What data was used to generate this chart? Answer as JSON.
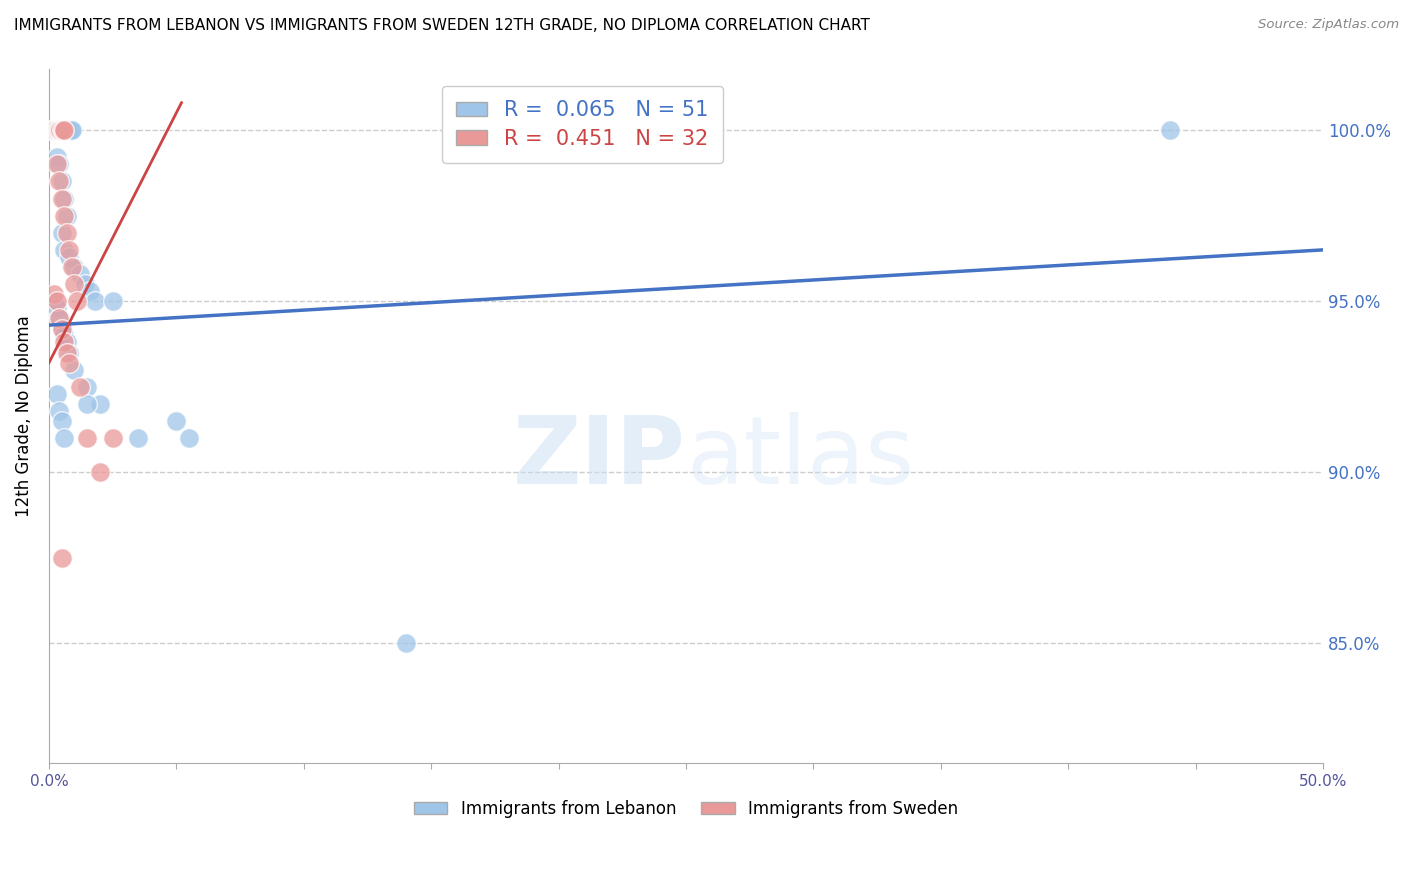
{
  "title": "IMMIGRANTS FROM LEBANON VS IMMIGRANTS FROM SWEDEN 12TH GRADE, NO DIPLOMA CORRELATION CHART",
  "source": "Source: ZipAtlas.com",
  "ylabel": "12th Grade, No Diploma",
  "r_blue": "0.065",
  "n_blue": "51",
  "r_pink": "0.451",
  "n_pink": "32",
  "blue_color": "#9fc5e8",
  "pink_color": "#ea9999",
  "blue_line_color": "#4472c4",
  "pink_line_color": "#cc4444",
  "background_color": "#ffffff",
  "grid_color": "#cccccc",
  "xlim": [
    0.0,
    50.0
  ],
  "ylim": [
    81.5,
    101.8
  ],
  "y_tick_vals": [
    85,
    90,
    95,
    100
  ],
  "y_tick_labels": [
    "85.0%",
    "90.0%",
    "95.0%",
    "100.0%"
  ],
  "legend_label_blue": "Immigrants from Lebanon",
  "legend_label_pink": "Immigrants from Sweden",
  "blue_trend": [
    0.0,
    50.0,
    94.3,
    96.5
  ],
  "pink_trend": [
    0.0,
    5.2,
    93.2,
    100.8
  ],
  "blue_x": [
    0.1,
    0.15,
    0.2,
    0.25,
    0.3,
    0.35,
    0.4,
    0.45,
    0.5,
    0.55,
    0.6,
    0.65,
    0.7,
    0.75,
    0.8,
    0.85,
    0.9,
    0.3,
    0.4,
    0.5,
    0.6,
    0.7,
    0.5,
    0.6,
    0.8,
    1.0,
    1.2,
    1.4,
    1.6,
    1.8,
    0.2,
    0.3,
    0.4,
    0.5,
    0.6,
    0.7,
    0.8,
    1.0,
    1.5,
    2.0,
    0.3,
    0.4,
    0.5,
    0.6,
    1.5,
    2.5,
    3.5,
    5.0,
    5.5,
    14.0,
    44.0
  ],
  "blue_y": [
    100.0,
    100.0,
    100.0,
    100.0,
    100.0,
    100.0,
    100.0,
    100.0,
    100.0,
    100.0,
    100.0,
    100.0,
    100.0,
    100.0,
    100.0,
    100.0,
    100.0,
    99.2,
    99.0,
    98.5,
    98.0,
    97.5,
    97.0,
    96.5,
    96.3,
    96.0,
    95.8,
    95.5,
    95.3,
    95.0,
    95.0,
    94.8,
    94.5,
    94.2,
    94.0,
    93.8,
    93.5,
    93.0,
    92.5,
    92.0,
    92.3,
    91.8,
    91.5,
    91.0,
    92.0,
    95.0,
    91.0,
    91.5,
    91.0,
    85.0,
    100.0
  ],
  "pink_x": [
    0.1,
    0.15,
    0.2,
    0.25,
    0.3,
    0.35,
    0.4,
    0.45,
    0.5,
    0.55,
    0.6,
    0.3,
    0.4,
    0.5,
    0.6,
    0.7,
    0.8,
    0.9,
    1.0,
    1.1,
    0.2,
    0.3,
    0.4,
    0.5,
    0.6,
    0.7,
    0.8,
    1.2,
    1.5,
    2.0,
    2.5,
    0.5
  ],
  "pink_y": [
    100.0,
    100.0,
    100.0,
    100.0,
    100.0,
    100.0,
    100.0,
    100.0,
    100.0,
    100.0,
    100.0,
    99.0,
    98.5,
    98.0,
    97.5,
    97.0,
    96.5,
    96.0,
    95.5,
    95.0,
    95.2,
    95.0,
    94.5,
    94.2,
    93.8,
    93.5,
    93.2,
    92.5,
    91.0,
    90.0,
    91.0,
    87.5
  ]
}
